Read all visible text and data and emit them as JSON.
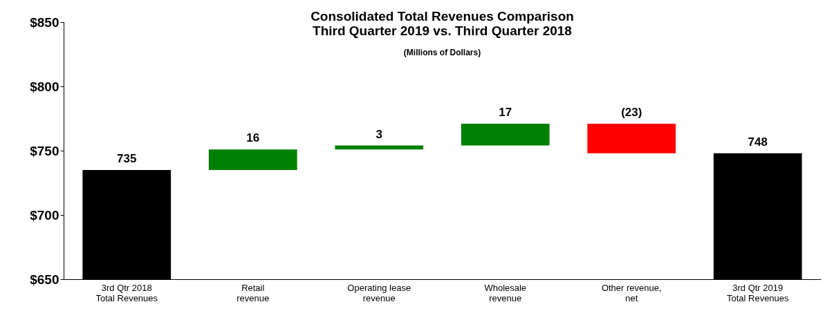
{
  "chart_data": {
    "type": "bar",
    "title": "Consolidated Total Revenues Comparison",
    "subtitle": "Third Quarter 2019 vs. Third Quarter 2018",
    "annotations": [
      "(Millions of Dollars)"
    ],
    "categories": [
      "3rd Qtr 2018\nTotal Revenues",
      "Retail\nrevenue",
      "Operating lease\nrevenue",
      "Wholesale\nrevenue",
      "Other revenue,\nnet",
      "3rd Qtr 2019\nTotal Revenues"
    ],
    "values": [
      735,
      16,
      3,
      17,
      -23,
      748
    ],
    "base": [
      null,
      735,
      751,
      754,
      771,
      null
    ],
    "colors": [
      "#000000",
      "#008000",
      "#008000",
      "#008000",
      "#ff0000",
      "#000000"
    ],
    "value_labels": [
      "735",
      "16",
      "3",
      "17",
      "(23)",
      "748"
    ],
    "ylim": [
      650,
      850
    ],
    "yticks": [
      {
        "value": 650,
        "label": "$650"
      },
      {
        "value": 700,
        "label": "$700"
      },
      {
        "value": 750,
        "label": "$750"
      },
      {
        "value": 800,
        "label": "$800"
      },
      {
        "value": 850,
        "label": "$850"
      }
    ],
    "grid": false
  }
}
